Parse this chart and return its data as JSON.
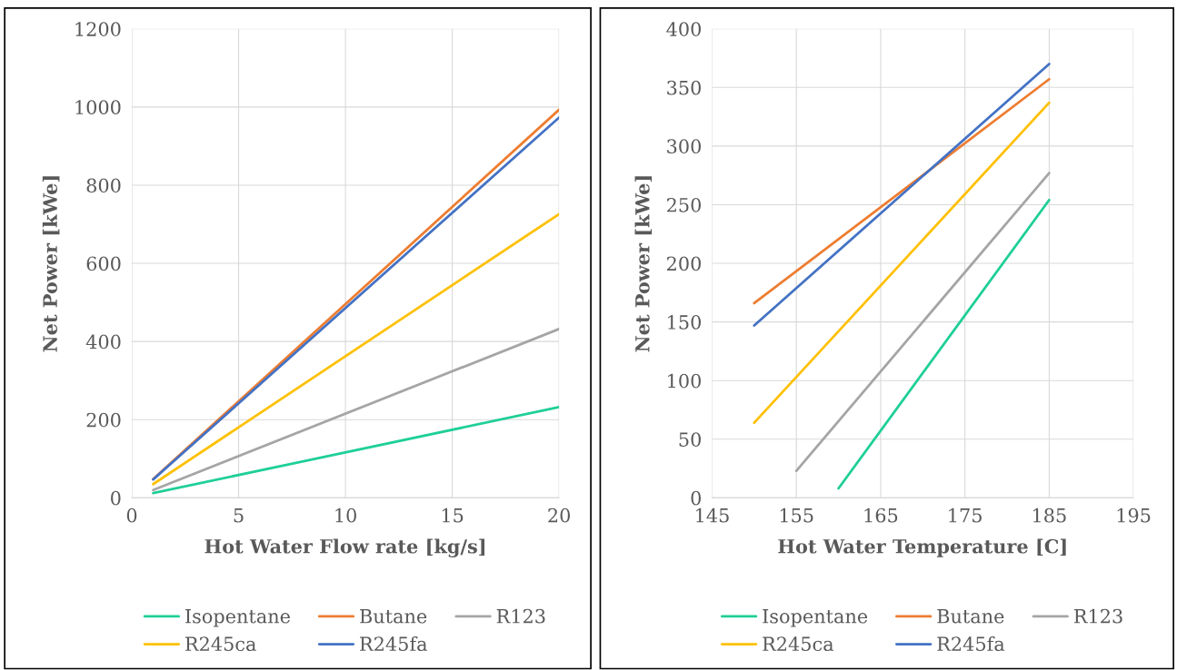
{
  "chart_data": [
    {
      "type": "line",
      "xlabel": "Hot Water Flow rate [kg/s]",
      "ylabel": "Net Power [kWe]",
      "x": [
        1,
        20
      ],
      "xlim": [
        0,
        20
      ],
      "xticks": [
        0,
        5,
        10,
        15,
        20
      ],
      "ylim": [
        0,
        1200
      ],
      "yticks": [
        0,
        200,
        400,
        600,
        800,
        1000,
        1200
      ],
      "grid": true,
      "legend": "bottom",
      "marker": "none",
      "line_style": "solid",
      "series": [
        {
          "name": "Isopentane",
          "color": "#1fcf97",
          "values": [
            12,
            232
          ]
        },
        {
          "name": "Butane",
          "color": "#ed7d31",
          "values": [
            48,
            993
          ]
        },
        {
          "name": "R123",
          "color": "#a5a5a5",
          "values": [
            20,
            432
          ]
        },
        {
          "name": "R245ca",
          "color": "#ffc000",
          "values": [
            35,
            726
          ]
        },
        {
          "name": "R245fa",
          "color": "#4472c4",
          "values": [
            47,
            973
          ]
        }
      ]
    },
    {
      "type": "line",
      "xlabel": "Hot Water Temperature [C]",
      "ylabel": "Net Power [kWe]",
      "xlim": [
        145,
        195
      ],
      "xticks": [
        145,
        155,
        165,
        175,
        185,
        195
      ],
      "ylim": [
        0,
        400
      ],
      "yticks": [
        0,
        50,
        100,
        150,
        200,
        250,
        300,
        350,
        400
      ],
      "grid": true,
      "legend": "bottom",
      "marker": "none",
      "line_style": "solid",
      "series": [
        {
          "name": "Isopentane",
          "color": "#1fcf97",
          "x": [
            160,
            185
          ],
          "values": [
            8,
            254
          ]
        },
        {
          "name": "Butane",
          "color": "#ed7d31",
          "x": [
            150,
            185
          ],
          "values": [
            166,
            357
          ]
        },
        {
          "name": "R123",
          "color": "#a5a5a5",
          "x": [
            155,
            185
          ],
          "values": [
            23,
            277
          ]
        },
        {
          "name": "R245ca",
          "color": "#ffc000",
          "x": [
            150,
            185
          ],
          "values": [
            64,
            337
          ]
        },
        {
          "name": "R245fa",
          "color": "#4472c4",
          "x": [
            150,
            185
          ],
          "values": [
            147,
            370
          ]
        }
      ]
    }
  ]
}
